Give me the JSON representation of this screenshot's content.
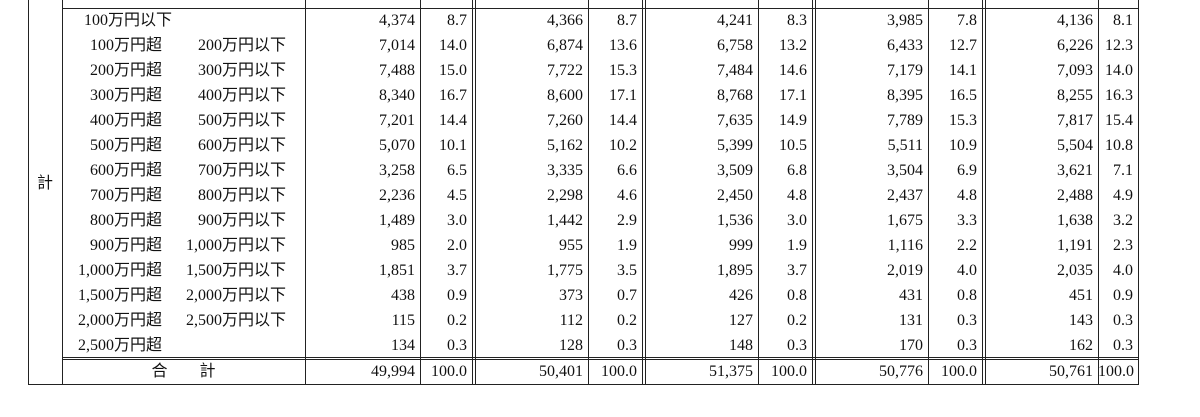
{
  "side_label": "計",
  "rows": [
    {
      "from": "100万円以下",
      "values": [
        "4,374",
        "8.7",
        "4,366",
        "8.7",
        "4,241",
        "8.3",
        "3,985",
        "7.8",
        "4,136",
        "8.1"
      ]
    },
    {
      "from": "100万円超",
      "to": "200万円以下",
      "values": [
        "7,014",
        "14.0",
        "6,874",
        "13.6",
        "6,758",
        "13.2",
        "6,433",
        "12.7",
        "6,226",
        "12.3"
      ]
    },
    {
      "from": "200万円超",
      "to": "300万円以下",
      "values": [
        "7,488",
        "15.0",
        "7,722",
        "15.3",
        "7,484",
        "14.6",
        "7,179",
        "14.1",
        "7,093",
        "14.0"
      ]
    },
    {
      "from": "300万円超",
      "to": "400万円以下",
      "values": [
        "8,340",
        "16.7",
        "8,600",
        "17.1",
        "8,768",
        "17.1",
        "8,395",
        "16.5",
        "8,255",
        "16.3"
      ]
    },
    {
      "from": "400万円超",
      "to": "500万円以下",
      "values": [
        "7,201",
        "14.4",
        "7,260",
        "14.4",
        "7,635",
        "14.9",
        "7,789",
        "15.3",
        "7,817",
        "15.4"
      ]
    },
    {
      "from": "500万円超",
      "to": "600万円以下",
      "values": [
        "5,070",
        "10.1",
        "5,162",
        "10.2",
        "5,399",
        "10.5",
        "5,511",
        "10.9",
        "5,504",
        "10.8"
      ]
    },
    {
      "from": "600万円超",
      "to": "700万円以下",
      "values": [
        "3,258",
        "6.5",
        "3,335",
        "6.6",
        "3,509",
        "6.8",
        "3,504",
        "6.9",
        "3,621",
        "7.1"
      ]
    },
    {
      "from": "700万円超",
      "to": "800万円以下",
      "values": [
        "2,236",
        "4.5",
        "2,298",
        "4.6",
        "2,450",
        "4.8",
        "2,437",
        "4.8",
        "2,488",
        "4.9"
      ]
    },
    {
      "from": "800万円超",
      "to": "900万円以下",
      "values": [
        "1,489",
        "3.0",
        "1,442",
        "2.9",
        "1,536",
        "3.0",
        "1,675",
        "3.3",
        "1,638",
        "3.2"
      ]
    },
    {
      "from": "900万円超",
      "to": "1,000万円以下",
      "values": [
        "985",
        "2.0",
        "955",
        "1.9",
        "999",
        "1.9",
        "1,116",
        "2.2",
        "1,191",
        "2.3"
      ]
    },
    {
      "from": "1,000万円超",
      "to": "1,500万円以下",
      "values": [
        "1,851",
        "3.7",
        "1,775",
        "3.5",
        "1,895",
        "3.7",
        "2,019",
        "4.0",
        "2,035",
        "4.0"
      ]
    },
    {
      "from": "1,500万円超",
      "to": "2,000万円以下",
      "values": [
        "438",
        "0.9",
        "373",
        "0.7",
        "426",
        "0.8",
        "431",
        "0.8",
        "451",
        "0.9"
      ]
    },
    {
      "from": "2,000万円超",
      "to": "2,500万円以下",
      "values": [
        "115",
        "0.2",
        "112",
        "0.2",
        "127",
        "0.2",
        "131",
        "0.3",
        "143",
        "0.3"
      ]
    },
    {
      "from": "2,500万円超",
      "values": [
        "134",
        "0.3",
        "128",
        "0.3",
        "148",
        "0.3",
        "170",
        "0.3",
        "162",
        "0.3"
      ]
    }
  ],
  "total": {
    "label": "合　　計",
    "values": [
      "49,994",
      "100.0",
      "50,401",
      "100.0",
      "51,375",
      "100.0",
      "50,776",
      "100.0",
      "50,761",
      "100.0"
    ]
  }
}
